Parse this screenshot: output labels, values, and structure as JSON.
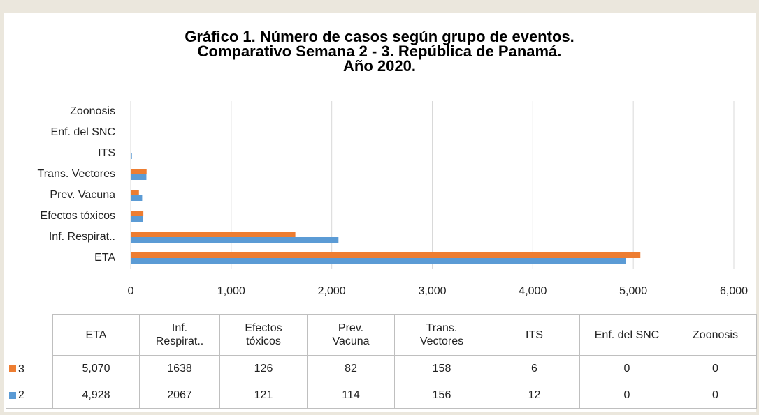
{
  "chart_data": {
    "type": "bar",
    "orientation": "horizontal",
    "title": "Gráfico 1. Número de casos según grupo de eventos.\nComparativo Semana 2 - 3. República de Panamá.\nAño 2020.",
    "categories": [
      "ETA",
      "Inf. Respirat..",
      "Efectos tóxicos",
      "Prev. Vacuna",
      "Trans. Vectores",
      "ITS",
      "Enf. del SNC",
      "Zoonosis"
    ],
    "series": [
      {
        "name": "3",
        "color": "#ed7d31",
        "values": [
          5070,
          1638,
          126,
          82,
          158,
          6,
          0,
          0
        ],
        "value_labels": [
          "5,070",
          "1638",
          "126",
          "82",
          "158",
          "6",
          "0",
          "0"
        ]
      },
      {
        "name": "2",
        "color": "#5b9bd5",
        "values": [
          4928,
          2067,
          121,
          114,
          156,
          12,
          0,
          0
        ],
        "value_labels": [
          "4,928",
          "2067",
          "121",
          "114",
          "156",
          "12",
          "0",
          "0"
        ]
      }
    ],
    "xlim": [
      0,
      6000
    ],
    "xticks": [
      0,
      {
        "value": 1000,
        "label": "1,000"
      },
      {
        "value": 2000,
        "label": "2,000"
      },
      {
        "value": 3000,
        "label": "3,000"
      },
      {
        "value": 4000,
        "label": "4,000"
      },
      {
        "value": 5000,
        "label": "5,000"
      },
      {
        "value": 6000,
        "label": "6,000"
      }
    ],
    "grid": true
  }
}
